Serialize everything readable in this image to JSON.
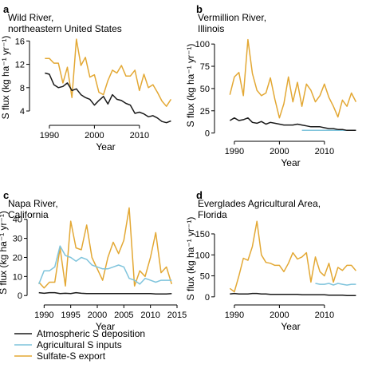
{
  "colors": {
    "atmospheric": "#1a1a1a",
    "agricultural": "#7fc4dc",
    "sulfate": "#e3a834"
  },
  "legend": [
    {
      "key": "atmospheric",
      "label": "Atmospheric S deposition"
    },
    {
      "key": "agricultural",
      "label": "Agricultural S inputs"
    },
    {
      "key": "sulfate",
      "label": "Sulfate-S export"
    }
  ],
  "chart_data": [
    {
      "type": "line",
      "panel": "a",
      "title": [
        "Wild River,",
        "northeastern United States"
      ],
      "xlabel": "Year",
      "ylabel": "S flux (kg ha⁻¹ yr⁻¹)",
      "xlim": [
        1987,
        2018
      ],
      "ylim": [
        2.5,
        17
      ],
      "xticks": [
        1990,
        2000,
        2010
      ],
      "yticks": [
        4,
        8,
        12,
        16
      ],
      "series": [
        {
          "key": "sulfate",
          "x": [
            1989,
            1990,
            1991,
            1992,
            1993,
            1994,
            1995,
            1996,
            1997,
            1998,
            1999,
            2000,
            2001,
            2002,
            2003,
            2004,
            2005,
            2006,
            2007,
            2008,
            2009,
            2010,
            2011,
            2012,
            2013,
            2014,
            2015,
            2016,
            2017
          ],
          "y": [
            13.0,
            13.0,
            12.2,
            12.2,
            8.8,
            11.5,
            6.3,
            16.3,
            11.8,
            13.2,
            9.8,
            10.2,
            7.2,
            6.8,
            9.2,
            11.0,
            10.5,
            11.8,
            10.0,
            10.0,
            11.0,
            7.5,
            10.3,
            8.0,
            8.5,
            7.2,
            5.7,
            4.8,
            6.0
          ]
        },
        {
          "key": "atmospheric",
          "x": [
            1989,
            1990,
            1991,
            1992,
            1993,
            1994,
            1995,
            1996,
            1997,
            1998,
            1999,
            2000,
            2001,
            2002,
            2003,
            2004,
            2005,
            2006,
            2007,
            2008,
            2009,
            2010,
            2011,
            2012,
            2013,
            2014,
            2015,
            2016,
            2017
          ],
          "y": [
            10.5,
            10.3,
            8.5,
            8.0,
            8.2,
            8.8,
            7.5,
            7.8,
            6.8,
            6.3,
            6.0,
            5.0,
            5.8,
            6.5,
            5.2,
            6.8,
            6.0,
            5.8,
            5.3,
            5.0,
            3.6,
            3.8,
            3.5,
            3.0,
            3.2,
            2.8,
            2.2,
            2.0,
            2.3
          ]
        }
      ]
    },
    {
      "type": "line",
      "panel": "b",
      "title": [
        "Vermillion River,",
        "Illinois"
      ],
      "xlabel": "Year",
      "ylabel": "S flux (kg ha⁻¹ yr⁻¹)",
      "xlim": [
        1987,
        2018
      ],
      "ylim": [
        -3,
        110
      ],
      "xticks": [
        1990,
        2000,
        2010
      ],
      "yticks": [
        0,
        25,
        50,
        75,
        100
      ],
      "series": [
        {
          "key": "sulfate",
          "x": [
            1989,
            1990,
            1991,
            1992,
            1993,
            1994,
            1995,
            1996,
            1997,
            1998,
            1999,
            2000,
            2001,
            2002,
            2003,
            2004,
            2005,
            2006,
            2007,
            2008,
            2009,
            2010,
            2011,
            2012,
            2013,
            2014,
            2015,
            2016,
            2017
          ],
          "y": [
            43,
            63,
            68,
            42,
            105,
            67,
            48,
            42,
            45,
            62,
            38,
            17,
            33,
            63,
            35,
            57,
            30,
            55,
            48,
            35,
            42,
            55,
            40,
            30,
            18,
            37,
            30,
            45,
            35
          ]
        },
        {
          "key": "agricultural",
          "x": [
            2005,
            2008,
            2011,
            2014,
            2017
          ],
          "y": [
            3,
            3,
            3,
            3,
            3
          ]
        },
        {
          "key": "atmospheric",
          "x": [
            1989,
            1990,
            1991,
            1992,
            1993,
            1994,
            1995,
            1996,
            1997,
            1998,
            1999,
            2000,
            2001,
            2002,
            2003,
            2004,
            2005,
            2006,
            2007,
            2008,
            2009,
            2010,
            2011,
            2012,
            2013,
            2014,
            2015,
            2016,
            2017
          ],
          "y": [
            14,
            17,
            14,
            15,
            17,
            12,
            11,
            13,
            10,
            12,
            11,
            10,
            9,
            9,
            9,
            10,
            9,
            8,
            7,
            7,
            7,
            6,
            5,
            5,
            4,
            4,
            3,
            3,
            3
          ]
        }
      ]
    },
    {
      "type": "line",
      "panel": "c",
      "title": [
        "Napa River,",
        "California"
      ],
      "xlabel": "Year",
      "ylabel": "S flux (kg ha⁻¹ yr⁻¹)",
      "xlim": [
        1988,
        2015
      ],
      "ylim": [
        -2,
        47
      ],
      "xticks": [
        1990,
        1995,
        2000,
        2005,
        2010,
        2015
      ],
      "yticks": [
        0,
        10,
        20,
        30,
        40
      ],
      "series": [
        {
          "key": "sulfate",
          "x": [
            1989,
            1990,
            1991,
            1992,
            1993,
            1994,
            1995,
            1996,
            1997,
            1998,
            1999,
            2000,
            2001,
            2002,
            2003,
            2004,
            2005,
            2006,
            2007,
            2008,
            2009,
            2010,
            2011,
            2012,
            2013,
            2014
          ],
          "y": [
            7,
            4,
            7,
            7,
            25,
            5,
            39,
            25,
            24,
            37,
            20,
            14,
            8,
            20,
            28,
            22,
            29,
            46,
            5,
            13,
            10,
            20,
            33,
            12,
            15,
            6
          ]
        },
        {
          "key": "agricultural",
          "x": [
            1989,
            1990,
            1991,
            1992,
            1993,
            1994,
            1995,
            1996,
            1997,
            1998,
            1999,
            2000,
            2001,
            2002,
            2003,
            2004,
            2005,
            2006,
            2007,
            2008,
            2009,
            2010,
            2011,
            2012,
            2013,
            2014
          ],
          "y": [
            6,
            13,
            13,
            15,
            26,
            21,
            20,
            18,
            20,
            19,
            16,
            15,
            14,
            14,
            15,
            16,
            15,
            9,
            8,
            6,
            9,
            8,
            7,
            8,
            8,
            8
          ]
        },
        {
          "key": "atmospheric",
          "x": [
            1989,
            1990,
            1991,
            1992,
            1993,
            1994,
            1995,
            1996,
            1997,
            1998,
            1999,
            2000,
            2001,
            2002,
            2003,
            2004,
            2005,
            2006,
            2007,
            2008,
            2009,
            2010,
            2011,
            2012,
            2013,
            2014
          ],
          "y": [
            1.5,
            1.2,
            1.5,
            1.5,
            1.0,
            1.2,
            1.0,
            1.5,
            1.2,
            1.0,
            1.0,
            1.0,
            1.0,
            1.0,
            1.0,
            1.0,
            1.0,
            1.0,
            1.0,
            1.0,
            1.0,
            1.0,
            0.8,
            0.8,
            0.8,
            1.0
          ]
        }
      ]
    },
    {
      "type": "line",
      "panel": "d",
      "title": [
        "Everglades Agricultural Area,",
        "Florida"
      ],
      "xlabel": "Year",
      "ylabel": "S flux (kg ha⁻¹ yr⁻¹)",
      "xlim": [
        1987,
        2018
      ],
      "ylim": [
        -6,
        188
      ],
      "xticks": [
        1990,
        2000,
        2010
      ],
      "yticks": [
        0,
        50,
        100,
        150
      ],
      "series": [
        {
          "key": "sulfate",
          "x": [
            1989,
            1990,
            1991,
            1992,
            1993,
            1994,
            1995,
            1996,
            1997,
            1998,
            1999,
            2000,
            2001,
            2002,
            2003,
            2004,
            2005,
            2006,
            2007,
            2008,
            2009,
            2010,
            2011,
            2012,
            2013,
            2014,
            2015,
            2016,
            2017
          ],
          "y": [
            20,
            12,
            50,
            92,
            87,
            120,
            180,
            100,
            82,
            80,
            75,
            75,
            60,
            80,
            105,
            90,
            95,
            105,
            35,
            95,
            60,
            50,
            80,
            35,
            70,
            63,
            75,
            75,
            62
          ]
        },
        {
          "key": "agricultural",
          "x": [
            2008,
            2009,
            2010,
            2011,
            2012,
            2013,
            2014,
            2015,
            2016,
            2017
          ],
          "y": [
            32,
            30,
            30,
            32,
            28,
            32,
            30,
            28,
            30,
            30
          ]
        },
        {
          "key": "atmospheric",
          "x": [
            1989,
            1990,
            1991,
            1992,
            1993,
            1994,
            1995,
            1996,
            1997,
            1998,
            1999,
            2000,
            2001,
            2002,
            2003,
            2004,
            2005,
            2006,
            2007,
            2008,
            2009,
            2010,
            2011,
            2012,
            2013,
            2014,
            2015,
            2016,
            2017
          ],
          "y": [
            7,
            8,
            7,
            7,
            7,
            8,
            8,
            7,
            7,
            6,
            6,
            6,
            6,
            6,
            6,
            6,
            5,
            5,
            5,
            5,
            5,
            5,
            4,
            4,
            4,
            4,
            3,
            3,
            3
          ]
        }
      ]
    }
  ]
}
